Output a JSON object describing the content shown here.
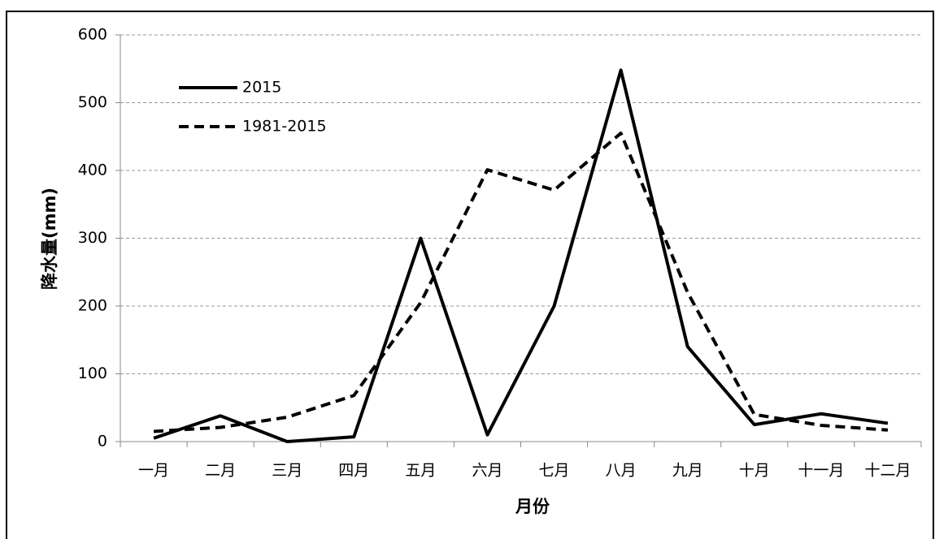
{
  "chart_data": {
    "type": "line",
    "xlabel": "月份",
    "ylabel": "降水量(mm)",
    "categories": [
      "一月",
      "二月",
      "三月",
      "四月",
      "五月",
      "六月",
      "七月",
      "八月",
      "九月",
      "十月",
      "十一月",
      "十二月"
    ],
    "series": [
      {
        "name": "2015",
        "color": "#000000",
        "line_style": "solid",
        "values": [
          5,
          38,
          0,
          7,
          300,
          10,
          200,
          548,
          140,
          25,
          41,
          27
        ]
      },
      {
        "name": "1981-2015",
        "color": "#000000",
        "line_style": "dashed",
        "values": [
          15,
          21,
          36,
          68,
          205,
          401,
          371,
          455,
          220,
          40,
          24,
          17
        ]
      }
    ],
    "ylim": [
      0,
      600
    ],
    "yticks": [
      0,
      100,
      200,
      300,
      400,
      500,
      600
    ],
    "grid": true,
    "legend": "upper-left"
  }
}
